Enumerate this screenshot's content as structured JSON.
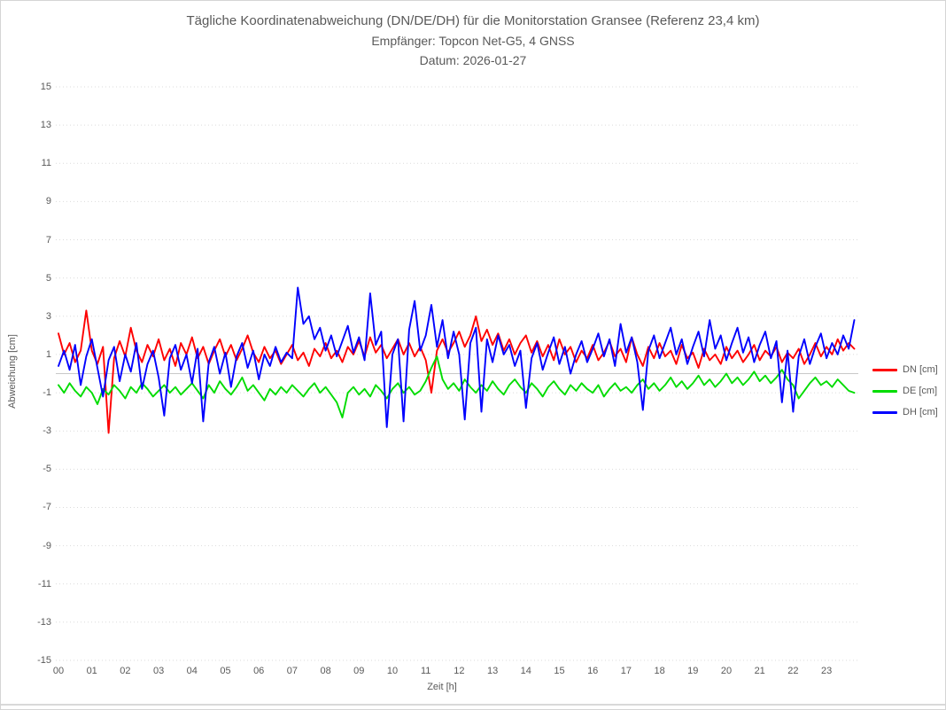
{
  "header": {
    "title_line1": "Tägliche Koordinatenabweichung (DN/DE/DH) für die Monitorstation Gransee (Referenz 23,4 km)",
    "title_line2": "Empfänger: Topcon Net-G5, 4 GNSS",
    "title_line3": "Datum: 2026-01-27"
  },
  "axes": {
    "y": {
      "label": "Abweichung [cm]",
      "min": -15,
      "max": 15,
      "tick_step": 2,
      "ticks": [
        "15",
        "13",
        "11",
        "9",
        "7",
        "5",
        "3",
        "1",
        "-1",
        "-3",
        "-5",
        "-7",
        "-9",
        "-11",
        "-13",
        "-15"
      ]
    },
    "x": {
      "label": "Zeit [h]",
      "ticks": [
        "00",
        "01",
        "02",
        "03",
        "04",
        "05",
        "06",
        "07",
        "08",
        "09",
        "10",
        "11",
        "12",
        "13",
        "14",
        "15",
        "16",
        "17",
        "18",
        "19",
        "20",
        "21",
        "22",
        "23"
      ]
    }
  },
  "legend": {
    "items": [
      {
        "id": "dn",
        "label": "DN [cm]",
        "color": "#fe0000"
      },
      {
        "id": "de",
        "label": "DE [cm]",
        "color": "#00dc00"
      },
      {
        "id": "dh",
        "label": "DH [cm]",
        "color": "#0000fe"
      }
    ]
  },
  "colors": {
    "text": "#595959",
    "grid_dotted": "#dbdbdb",
    "grid_zero": "#c8c8c8",
    "page_border": "#d5d5d5"
  },
  "chart_data": {
    "type": "line",
    "title": "Tägliche Koordinatenabweichung (DN/DE/DH) für die Monitorstation Gransee (Referenz 23,4 km)",
    "subtitle_receiver": "Empfänger: Topcon Net-G5, 4 GNSS",
    "subtitle_date": "Datum: 2026-01-27",
    "xlabel": "Zeit [h]",
    "ylabel": "Abweichung [cm]",
    "xlim_hours": [
      0,
      24
    ],
    "ylim": [
      -15,
      15
    ],
    "y_tick_interval": 2,
    "grid": "horizontal dotted lines at odd cm values, solid light line at 0",
    "legend_position": "right",
    "x_start_hour": 0,
    "sample_interval_minutes": 10,
    "points_per_series": 144,
    "series": [
      {
        "name": "DN [cm]",
        "color": "#fe0000",
        "values": [
          2.1,
          1.0,
          1.6,
          0.6,
          1.2,
          3.3,
          1.2,
          0.5,
          1.4,
          -3.1,
          0.8,
          1.7,
          0.9,
          2.4,
          1.2,
          0.6,
          1.5,
          0.9,
          1.8,
          0.7,
          1.3,
          0.4,
          1.6,
          1.0,
          1.9,
          0.8,
          1.4,
          0.5,
          1.2,
          1.8,
          0.9,
          1.5,
          0.7,
          1.3,
          2.0,
          1.1,
          0.6,
          1.4,
          0.8,
          1.2,
          0.5,
          1.0,
          1.5,
          0.7,
          1.1,
          0.4,
          1.3,
          0.9,
          1.6,
          0.8,
          1.2,
          0.6,
          1.4,
          1.0,
          1.7,
          0.9,
          1.9,
          1.1,
          1.5,
          0.8,
          1.3,
          1.8,
          1.0,
          1.6,
          0.9,
          1.4,
          0.7,
          -1.0,
          1.2,
          1.8,
          1.1,
          1.6,
          2.2,
          1.4,
          2.0,
          3.0,
          1.7,
          2.3,
          1.5,
          2.1,
          1.2,
          1.8,
          1.0,
          1.6,
          2.0,
          1.1,
          1.7,
          0.9,
          1.5,
          0.7,
          1.8,
          1.0,
          1.4,
          0.6,
          1.2,
          0.8,
          1.5,
          0.7,
          1.1,
          1.7,
          0.9,
          1.3,
          0.6,
          1.9,
          1.0,
          0.4,
          1.4,
          0.8,
          1.6,
          0.9,
          1.2,
          0.5,
          1.5,
          0.8,
          1.1,
          0.3,
          1.3,
          0.7,
          1.0,
          0.5,
          1.4,
          0.8,
          1.2,
          0.6,
          1.0,
          1.5,
          0.7,
          1.2,
          0.9,
          1.4,
          0.6,
          1.1,
          0.8,
          1.3,
          0.5,
          1.0,
          1.6,
          0.9,
          1.4,
          1.0,
          1.8,
          1.2,
          1.6,
          1.3
        ]
      },
      {
        "name": "DE [cm]",
        "color": "#00dc00",
        "values": [
          -0.6,
          -1.0,
          -0.5,
          -0.9,
          -1.2,
          -0.7,
          -1.0,
          -1.6,
          -0.8,
          -1.1,
          -0.6,
          -0.9,
          -1.3,
          -0.7,
          -1.0,
          -0.5,
          -0.8,
          -1.2,
          -0.9,
          -0.6,
          -1.0,
          -0.7,
          -1.1,
          -0.8,
          -0.5,
          -0.9,
          -1.3,
          -0.6,
          -1.0,
          -0.4,
          -0.8,
          -1.1,
          -0.7,
          -0.2,
          -0.9,
          -0.6,
          -1.0,
          -1.4,
          -0.8,
          -1.1,
          -0.7,
          -1.0,
          -0.6,
          -0.9,
          -1.2,
          -0.8,
          -0.5,
          -1.0,
          -0.7,
          -1.1,
          -1.5,
          -2.3,
          -1.0,
          -0.7,
          -1.1,
          -0.8,
          -1.2,
          -0.6,
          -0.9,
          -1.3,
          -0.8,
          -0.5,
          -1.0,
          -0.7,
          -1.1,
          -0.9,
          -0.4,
          0.3,
          0.9,
          -0.3,
          -0.8,
          -0.5,
          -0.9,
          -0.3,
          -0.7,
          -1.0,
          -0.6,
          -0.9,
          -0.4,
          -0.8,
          -1.1,
          -0.6,
          -0.3,
          -0.7,
          -1.0,
          -0.5,
          -0.8,
          -1.2,
          -0.7,
          -0.4,
          -0.8,
          -1.1,
          -0.6,
          -0.9,
          -0.5,
          -0.8,
          -1.0,
          -0.6,
          -1.2,
          -0.8,
          -0.5,
          -0.9,
          -0.7,
          -1.0,
          -0.6,
          -0.3,
          -0.8,
          -0.5,
          -0.9,
          -0.6,
          -0.2,
          -0.7,
          -0.4,
          -0.8,
          -0.5,
          -0.1,
          -0.6,
          -0.3,
          -0.7,
          -0.4,
          0.0,
          -0.5,
          -0.2,
          -0.6,
          -0.3,
          0.1,
          -0.4,
          -0.1,
          -0.5,
          -0.2,
          0.2,
          -0.3,
          -0.6,
          -1.3,
          -0.9,
          -0.5,
          -0.2,
          -0.6,
          -0.4,
          -0.7,
          -0.3,
          -0.6,
          -0.9,
          -1.0
        ]
      },
      {
        "name": "DH [cm]",
        "color": "#0000fe",
        "values": [
          0.4,
          1.2,
          0.2,
          1.5,
          -0.6,
          0.9,
          1.8,
          0.3,
          -1.2,
          0.7,
          1.4,
          -0.4,
          1.0,
          0.1,
          1.6,
          -0.8,
          0.5,
          1.2,
          -0.2,
          -2.2,
          0.8,
          1.5,
          0.2,
          1.0,
          -0.5,
          1.3,
          -2.5,
          0.6,
          1.4,
          0.0,
          1.1,
          -0.7,
          0.9,
          1.6,
          0.3,
          1.2,
          -0.3,
          1.0,
          0.4,
          1.4,
          0.6,
          1.1,
          0.8,
          4.5,
          2.6,
          3.0,
          1.8,
          2.4,
          1.2,
          2.0,
          0.9,
          1.7,
          2.5,
          1.1,
          1.9,
          0.7,
          4.2,
          1.5,
          2.2,
          -2.8,
          1.0,
          1.8,
          -2.5,
          2.3,
          3.8,
          1.2,
          2.0,
          3.6,
          1.4,
          2.8,
          0.8,
          2.2,
          1.0,
          -2.4,
          1.6,
          2.4,
          -2.0,
          1.8,
          0.6,
          2.0,
          1.0,
          1.5,
          0.4,
          1.2,
          -1.8,
          0.8,
          1.6,
          0.2,
          1.1,
          1.9,
          0.5,
          1.4,
          0.0,
          1.0,
          1.7,
          0.6,
          1.3,
          2.1,
          0.9,
          1.8,
          0.4,
          2.6,
          1.1,
          1.9,
          0.6,
          -1.9,
          1.2,
          2.0,
          0.8,
          1.6,
          2.4,
          1.0,
          1.8,
          0.5,
          1.4,
          2.2,
          0.9,
          2.8,
          1.3,
          2.0,
          0.7,
          1.6,
          2.4,
          1.1,
          1.9,
          0.6,
          1.5,
          2.2,
          0.8,
          1.7,
          -1.5,
          1.2,
          -2.0,
          0.9,
          1.8,
          0.5,
          1.4,
          2.1,
          0.8,
          1.6,
          1.0,
          2.0,
          1.3,
          2.8
        ]
      }
    ]
  }
}
